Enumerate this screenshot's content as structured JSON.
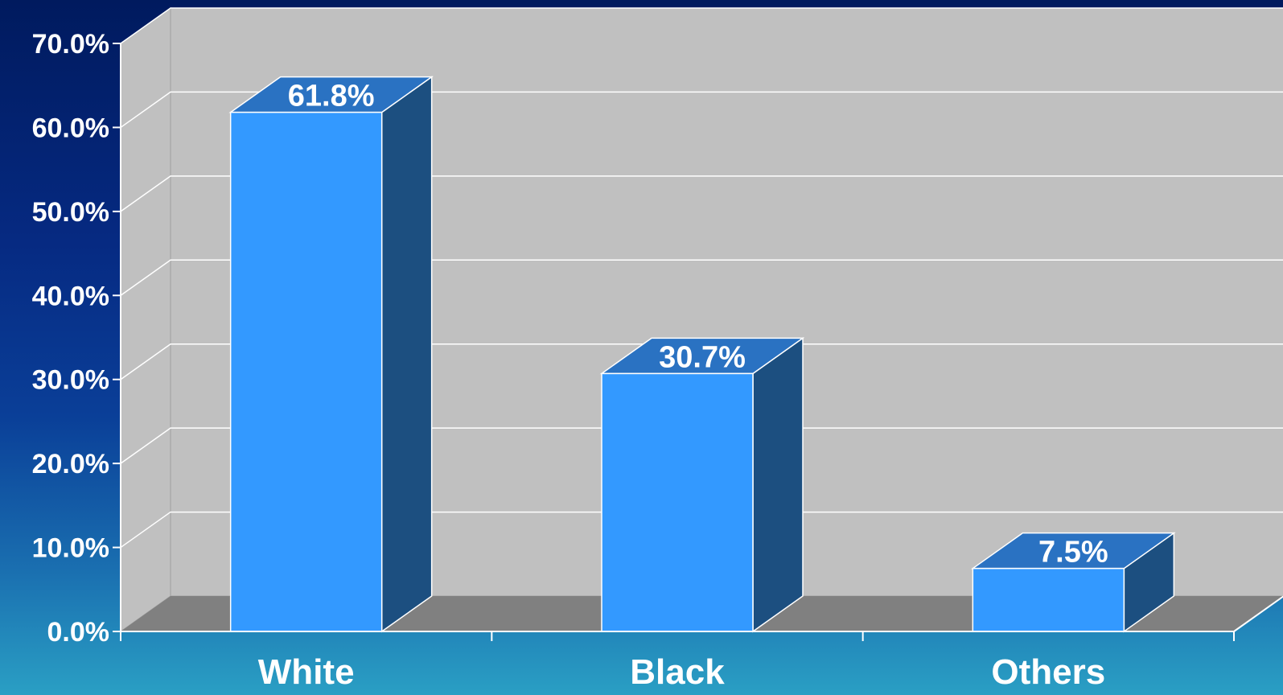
{
  "chart_data": {
    "type": "bar",
    "categories": [
      "White",
      "Black",
      "Others"
    ],
    "values": [
      61.8,
      30.7,
      7.5
    ],
    "data_labels": [
      "61.8%",
      "30.7%",
      "7.5%"
    ],
    "ytick_labels": [
      "0.0%",
      "10.0%",
      "20.0%",
      "30.0%",
      "40.0%",
      "50.0%",
      "60.0%",
      "70.0%"
    ],
    "ylim": [
      0,
      70
    ],
    "grid": true,
    "style": "3d-column",
    "colors": {
      "bar_front": "#3399ff",
      "bar_top": "#2a72c2",
      "bar_side": "#1c4f80",
      "wall": "#c0c0c0",
      "floor": "#808080",
      "gridline": "#ffffff",
      "text": "#ffffff"
    }
  }
}
